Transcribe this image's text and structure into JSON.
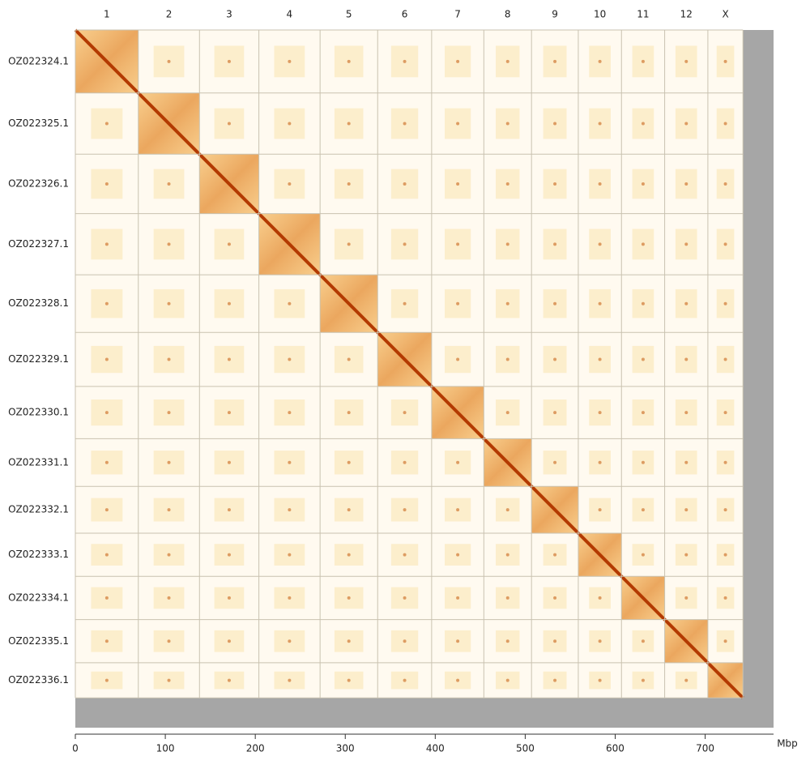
{
  "chart_data": {
    "type": "contact-map",
    "x_label": "Mbp",
    "columns": [
      "1",
      "2",
      "3",
      "4",
      "5",
      "6",
      "7",
      "8",
      "9",
      "10",
      "11",
      "12",
      "X"
    ],
    "rows": [
      "OZ022324.1",
      "OZ022325.1",
      "OZ022326.1",
      "OZ022327.1",
      "OZ022328.1",
      "OZ022329.1",
      "OZ022330.1",
      "OZ022331.1",
      "OZ022332.1",
      "OZ022333.1",
      "OZ022334.1",
      "OZ022335.1",
      "OZ022336.1"
    ],
    "lengths": [
      70,
      68,
      66,
      68,
      64,
      60,
      58,
      53,
      52,
      48,
      48,
      48,
      39
    ],
    "xlim": [
      0,
      776
    ],
    "xticks": [
      0,
      100,
      200,
      300,
      400,
      500,
      600,
      700
    ],
    "color": "#b33a00"
  }
}
